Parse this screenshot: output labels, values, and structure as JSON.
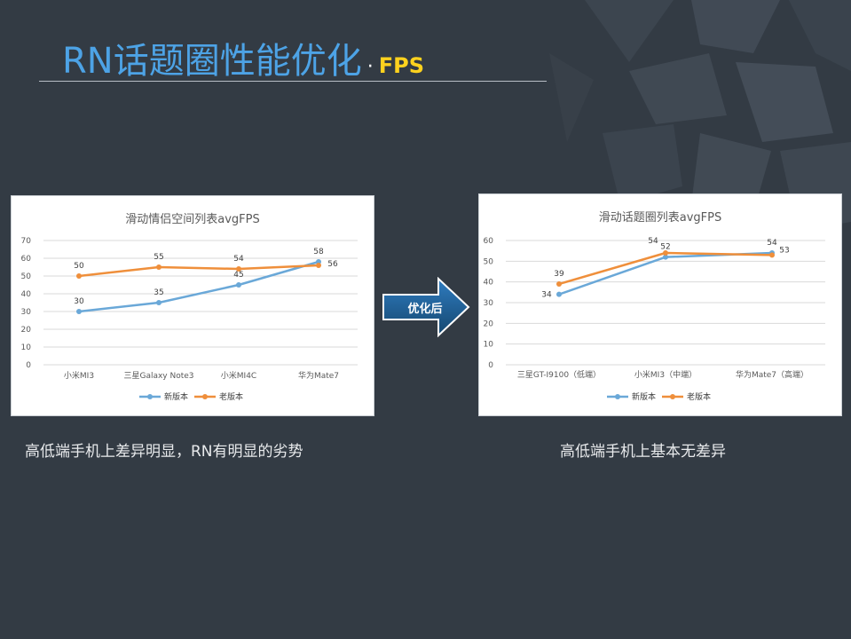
{
  "slide": {
    "title_main": "RN话题圈性能优化",
    "title_dot": "·",
    "title_sub": "FPS",
    "arrow_label": "优化后",
    "caption_left": "高低端手机上差异明显，RN有明显的劣势",
    "caption_right": "高低端手机上基本无差异"
  },
  "colors": {
    "background": "#333b44",
    "title": "#4da3e6",
    "subtitle": "#ffd21e",
    "new_series": "#6aa8d8",
    "old_series": "#ef8f3b",
    "arrow": "#1f5f98"
  },
  "chart_data": [
    {
      "type": "line",
      "title": "滑动情侣空间列表avgFPS",
      "categories": [
        "小米MI3",
        "三星Galaxy Note3",
        "小米MI4C",
        "华为Mate7"
      ],
      "series": [
        {
          "name": "新版本",
          "values": [
            30,
            35,
            45,
            58
          ]
        },
        {
          "name": "老版本",
          "values": [
            50,
            55,
            54,
            56
          ]
        }
      ],
      "ylim": [
        0,
        70
      ],
      "yticks": [
        0,
        10,
        20,
        30,
        40,
        50,
        60,
        70
      ],
      "grid": true,
      "legend": "bottom"
    },
    {
      "type": "line",
      "title": "滑动话题圈列表avgFPS",
      "categories": [
        "三星GT-I9100（低端）",
        "小米MI3（中端）",
        "华为Mate7（高端）"
      ],
      "series": [
        {
          "name": "新版本",
          "values": [
            34,
            52,
            54
          ]
        },
        {
          "name": "老版本",
          "values": [
            39,
            54,
            53
          ]
        }
      ],
      "ylim": [
        0,
        60
      ],
      "yticks": [
        0,
        10,
        20,
        30,
        40,
        50,
        60
      ],
      "grid": true,
      "legend": "bottom"
    }
  ]
}
